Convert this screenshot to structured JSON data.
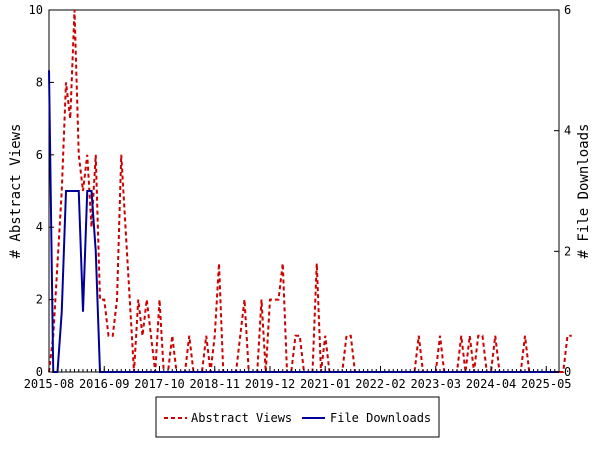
{
  "chart_data": {
    "type": "line",
    "title": "",
    "xlabel": "",
    "y_left_label": "# Abstract Views",
    "y_right_label": "# File Downloads",
    "y_left_range": [
      0,
      10
    ],
    "y_right_range": [
      0,
      6
    ],
    "y_left_ticks": [
      "0",
      "2",
      "4",
      "6",
      "8",
      "10"
    ],
    "y_right_ticks": [
      "0",
      "2",
      "4",
      "6"
    ],
    "x_ticks": [
      "2015-08",
      "2016-09",
      "2017-10",
      "2018-11",
      "2019-12",
      "2021-01",
      "2022-02",
      "2023-03",
      "2024-04",
      "2025-05"
    ],
    "x_range_months": [
      0,
      120
    ],
    "grid": false,
    "legend_position": "bottom",
    "series": [
      {
        "name": "Abstract Views",
        "axis": "left",
        "color": "#cc0000",
        "style": "dashed",
        "values": [
          0,
          1,
          3,
          5,
          8,
          7,
          10,
          6,
          5,
          6,
          4,
          6,
          2,
          2,
          1,
          1,
          2,
          6,
          4,
          2,
          0,
          2,
          1,
          2,
          1,
          0,
          2,
          0,
          0,
          1,
          0,
          0,
          0,
          1,
          0,
          0,
          0,
          1,
          0,
          1,
          3,
          0,
          0,
          0,
          0,
          1,
          2,
          0,
          0,
          0,
          2,
          0,
          2,
          2,
          2,
          3,
          0,
          0,
          1,
          1,
          0,
          0,
          0,
          3,
          0,
          1,
          0,
          0,
          0,
          0,
          1,
          1,
          0,
          0,
          0,
          0,
          0,
          0,
          0,
          0,
          0,
          0,
          0,
          0,
          0,
          0,
          0,
          1,
          0,
          0,
          0,
          0,
          1,
          0,
          0,
          0,
          0,
          1,
          0,
          1,
          0,
          1,
          1,
          0,
          0,
          1,
          0,
          0,
          0,
          0,
          0,
          0,
          1,
          0,
          0,
          0,
          0,
          0,
          0,
          0,
          0,
          0,
          1,
          1
        ]
      },
      {
        "name": "File Downloads",
        "axis": "right",
        "color": "#000099",
        "style": "solid",
        "values": [
          5,
          0,
          0,
          1,
          3,
          3,
          3,
          3,
          1,
          3,
          3,
          2,
          0,
          0,
          0,
          0,
          0,
          0,
          0,
          0,
          0,
          0,
          0,
          0,
          0,
          0,
          0,
          0,
          0,
          0,
          0,
          0,
          0,
          0,
          0,
          0,
          0,
          0,
          0,
          0,
          0,
          0,
          0,
          0,
          0,
          0,
          0,
          0,
          0,
          0,
          0,
          0,
          0,
          0,
          0,
          0,
          0,
          0,
          0,
          0,
          0,
          0,
          0,
          0,
          0,
          0,
          0,
          0,
          0,
          0,
          0,
          0,
          0,
          0,
          0,
          0,
          0,
          0,
          0,
          0,
          0,
          0,
          0,
          0,
          0,
          0,
          0,
          0,
          0,
          0,
          0,
          0,
          0,
          0,
          0,
          0,
          0,
          0,
          0,
          0,
          0,
          0,
          0,
          0,
          0,
          0,
          0,
          0,
          0,
          0,
          0,
          0,
          0,
          0,
          0,
          0,
          0,
          0,
          0,
          0,
          0
        ]
      }
    ]
  }
}
